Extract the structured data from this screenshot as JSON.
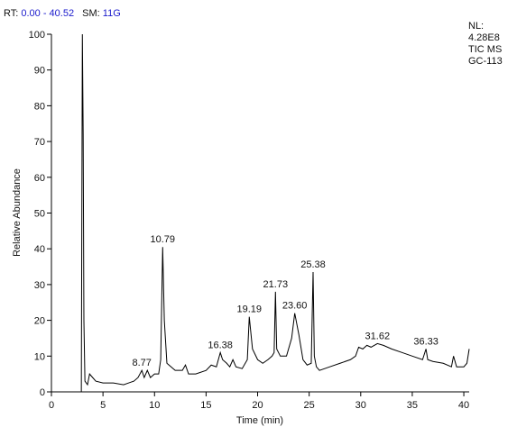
{
  "header": {
    "rt_label": "RT:",
    "rt_range": "0.00 - 40.52",
    "sm_label": "SM:",
    "sm_value": "11G"
  },
  "info": [
    "NL:",
    "4.28E8",
    "TIC  MS",
    "GC-113"
  ],
  "chart_data": {
    "type": "line",
    "x_label": "Time (min)",
    "y_label": "Relative Abundance",
    "x": [
      2.9,
      3.0,
      3.08,
      3.15,
      3.25,
      3.5,
      3.7,
      4.0,
      4.3,
      5,
      6,
      7,
      7.5,
      8,
      8.4,
      8.77,
      9.0,
      9.3,
      9.6,
      10,
      10.4,
      10.6,
      10.79,
      10.95,
      11.2,
      12,
      12.7,
      13,
      13.3,
      14,
      15,
      15.5,
      16,
      16.38,
      16.6,
      17,
      17.3,
      17.6,
      17.9,
      18.5,
      19.0,
      19.19,
      19.5,
      20,
      20.5,
      21,
      21.4,
      21.6,
      21.73,
      21.85,
      22.2,
      22.8,
      23.3,
      23.6,
      24,
      24.4,
      24.8,
      25.2,
      25.38,
      25.5,
      25.7,
      26,
      27,
      28,
      29,
      29.5,
      29.8,
      30.2,
      30.6,
      31,
      31.62,
      32.2,
      33,
      34,
      35,
      36,
      36.33,
      36.5,
      37,
      38,
      38.8,
      39,
      39.3,
      40,
      40.3,
      40.52
    ],
    "series": [
      {
        "color": "#000000",
        "values": [
          0,
          100,
          72,
          20,
          3,
          2,
          5,
          4,
          3,
          2.5,
          2.5,
          2,
          2.5,
          3,
          4,
          6,
          4,
          6,
          4,
          5,
          5,
          9,
          40.5,
          20,
          8,
          6,
          6,
          7.5,
          5,
          5,
          6,
          7.5,
          7,
          11,
          9,
          8,
          7,
          9,
          7,
          6.5,
          9,
          21,
          12,
          9,
          8,
          9,
          10,
          11,
          28,
          12,
          10,
          10,
          15,
          22,
          16,
          9,
          7.5,
          8,
          33.5,
          10,
          7,
          6,
          7,
          8,
          9,
          10,
          12.5,
          12,
          13,
          12.5,
          13.5,
          13,
          12,
          11,
          10,
          9,
          12,
          9,
          8.5,
          8,
          7,
          10,
          7,
          7,
          8,
          12
        ]
      }
    ],
    "peaks": [
      {
        "x": 8.77,
        "y": 6,
        "label": "8.77"
      },
      {
        "x": 10.79,
        "y": 40.5,
        "label": "10.79"
      },
      {
        "x": 16.38,
        "y": 11,
        "label": "16.38"
      },
      {
        "x": 19.19,
        "y": 21,
        "label": "19.19"
      },
      {
        "x": 21.73,
        "y": 28,
        "label": "21.73"
      },
      {
        "x": 23.6,
        "y": 22,
        "label": "23.60"
      },
      {
        "x": 25.38,
        "y": 33.5,
        "label": "25.38"
      },
      {
        "x": 31.62,
        "y": 13.5,
        "label": "31.62"
      },
      {
        "x": 36.33,
        "y": 12,
        "label": "36.33"
      }
    ],
    "xlim": [
      0,
      40.52
    ],
    "xticks": [
      0,
      5,
      10,
      15,
      20,
      25,
      30,
      35,
      40
    ],
    "ylim": [
      0,
      100
    ],
    "yticks": [
      0,
      10,
      20,
      30,
      40,
      50,
      60,
      70,
      80,
      90,
      100
    ]
  }
}
